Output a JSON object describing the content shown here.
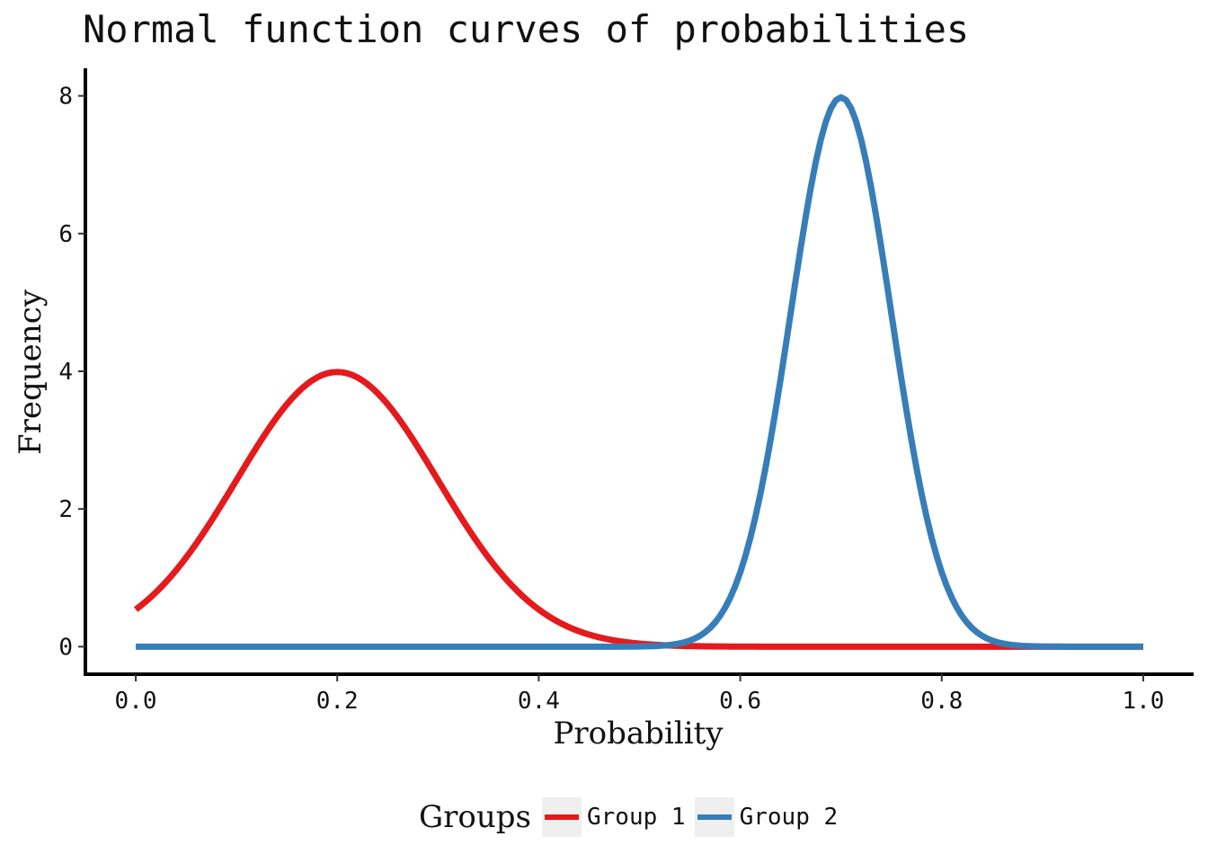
{
  "chart_data": {
    "type": "line",
    "title": "Normal function curves of probabilities",
    "xlabel": "Probability",
    "ylabel": "Frequency",
    "xlim": [
      -0.05,
      1.05
    ],
    "ylim": [
      -0.4,
      8.4
    ],
    "xticks": [
      0.0,
      0.2,
      0.4,
      0.6,
      0.8,
      1.0
    ],
    "xtick_labels": [
      "0.0",
      "0.2",
      "0.4",
      "0.6",
      "0.8",
      "1.0"
    ],
    "yticks": [
      0,
      2,
      4,
      6,
      8
    ],
    "ytick_labels": [
      "0",
      "2",
      "4",
      "6",
      "8"
    ],
    "grid": false,
    "legend": {
      "title": "Groups",
      "position": "bottom"
    },
    "series": [
      {
        "name": "Group 1",
        "color": "#e41a1c",
        "distribution": "normal",
        "mean": 0.2,
        "sd": 0.1,
        "x_range": [
          0.0,
          1.0
        ]
      },
      {
        "name": "Group 2",
        "color": "#377eb8",
        "distribution": "normal",
        "mean": 0.7,
        "sd": 0.05,
        "x_range": [
          0.0,
          1.0
        ]
      }
    ]
  }
}
